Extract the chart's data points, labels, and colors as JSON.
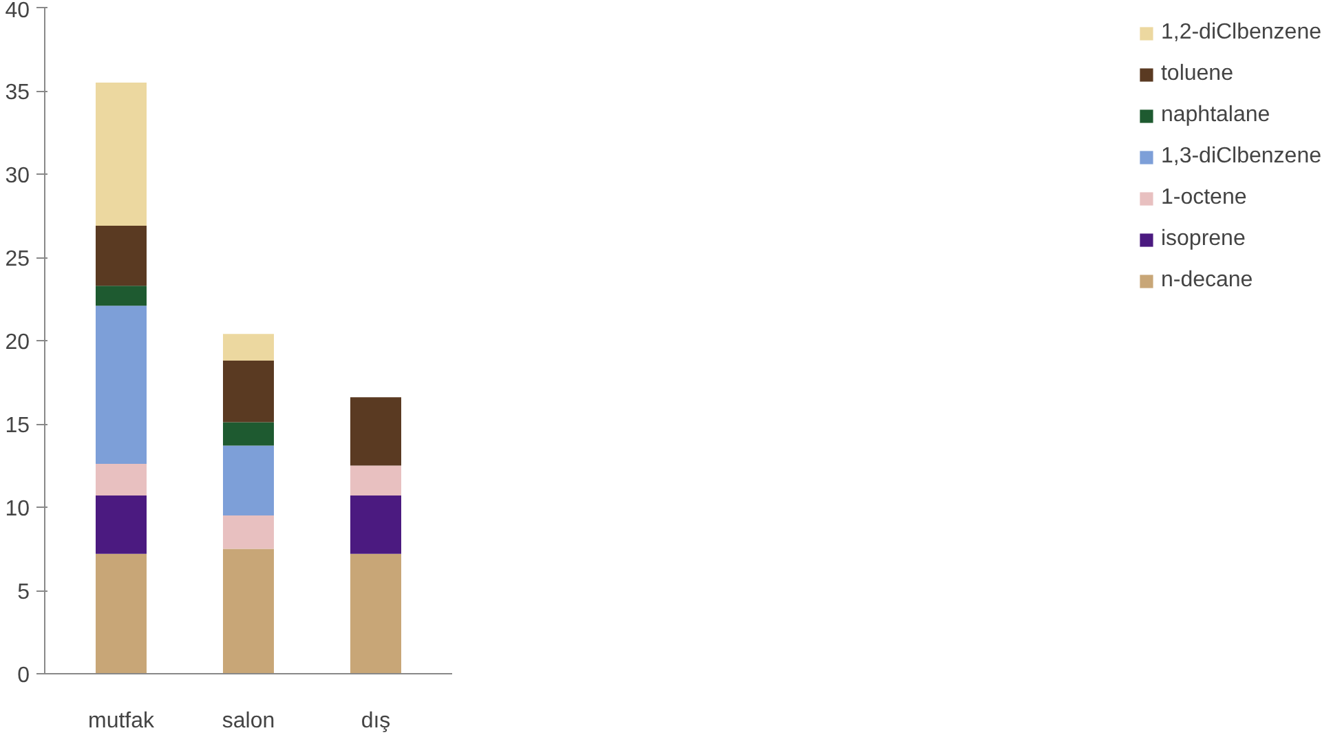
{
  "chart_data": {
    "type": "bar",
    "stacked": true,
    "categories": [
      "mutfak",
      "salon",
      "dış"
    ],
    "series": [
      {
        "name": "n-decane",
        "color": "#c8a677",
        "values": [
          7.2,
          7.5,
          7.2
        ]
      },
      {
        "name": "isoprene",
        "color": "#4b1a80",
        "values": [
          3.5,
          0,
          3.5
        ]
      },
      {
        "name": "1-octene",
        "color": "#e8c0c0",
        "values": [
          1.9,
          2.0,
          1.8
        ]
      },
      {
        "name": "1,3-diClbenzene",
        "color": "#7d9fd8",
        "values": [
          9.5,
          4.2,
          0
        ]
      },
      {
        "name": "naphtalane",
        "color": "#1e5a30",
        "values": [
          1.2,
          1.4,
          0
        ]
      },
      {
        "name": "toluene",
        "color": "#5a3a22",
        "values": [
          3.6,
          3.7,
          4.1
        ]
      },
      {
        "name": "1,2-diClbenzene",
        "color": "#ecd8a0",
        "values": [
          8.6,
          1.6,
          0
        ]
      }
    ],
    "ylim": [
      0,
      40
    ],
    "yticks": [
      0,
      5,
      10,
      15,
      20,
      25,
      30,
      35,
      40
    ],
    "grid": false,
    "legend": "right"
  }
}
